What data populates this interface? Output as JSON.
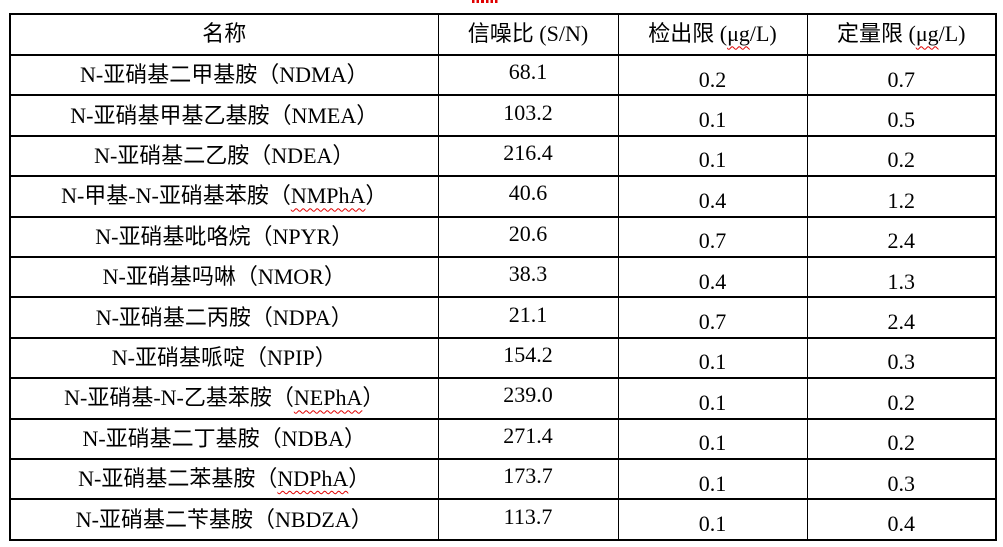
{
  "colors": {
    "grid_line": "#000000",
    "text": "#000000",
    "spellcheck_underline": "#e00000",
    "background": "#ffffff"
  },
  "table": {
    "headers": [
      {
        "pre": "名称",
        "flag": "",
        "post": ""
      },
      {
        "pre": "信噪比 (S/N)",
        "flag": "",
        "post": ""
      },
      {
        "pre": "检出限 (",
        "flag": "μg",
        "post": "/L)"
      },
      {
        "pre": "定量限 (",
        "flag": "μg",
        "post": "/L)"
      }
    ],
    "rows": [
      {
        "name_pre": "N-亚硝基二甲基胺（NDMA）",
        "name_flag": "",
        "name_post": "",
        "sn": "68.1",
        "lod": "0.2",
        "loq": "0.7"
      },
      {
        "name_pre": "N-亚硝基甲基乙基胺（NMEA）",
        "name_flag": "",
        "name_post": "",
        "sn": "103.2",
        "lod": "0.1",
        "loq": "0.5"
      },
      {
        "name_pre": "N-亚硝基二乙胺（NDEA）",
        "name_flag": "",
        "name_post": "",
        "sn": "216.4",
        "lod": "0.1",
        "loq": "0.2"
      },
      {
        "name_pre": "N-甲基-N-亚硝基苯胺（",
        "name_flag": "NMPhA",
        "name_post": "）",
        "sn": "40.6",
        "lod": "0.4",
        "loq": "1.2"
      },
      {
        "name_pre": "N-亚硝基吡咯烷（NPYR）",
        "name_flag": "",
        "name_post": "",
        "sn": "20.6",
        "lod": "0.7",
        "loq": "2.4"
      },
      {
        "name_pre": "N-亚硝基吗啉（NMOR）",
        "name_flag": "",
        "name_post": "",
        "sn": "38.3",
        "lod": "0.4",
        "loq": "1.3"
      },
      {
        "name_pre": "N-亚硝基二丙胺（NDPA）",
        "name_flag": "",
        "name_post": "",
        "sn": "21.1",
        "lod": "0.7",
        "loq": "2.4"
      },
      {
        "name_pre": "N-亚硝基哌啶（NPIP）",
        "name_flag": "",
        "name_post": "",
        "sn": "154.2",
        "lod": "0.1",
        "loq": "0.3"
      },
      {
        "name_pre": "N-亚硝基-N-乙基苯胺（",
        "name_flag": "NEPhA",
        "name_post": "）",
        "sn": "239.0",
        "lod": "0.1",
        "loq": "0.2"
      },
      {
        "name_pre": "N-亚硝基二丁基胺（NDBA）",
        "name_flag": "",
        "name_post": "",
        "sn": "271.4",
        "lod": "0.1",
        "loq": "0.2"
      },
      {
        "name_pre": "N-亚硝基二苯基胺（",
        "name_flag": "NDPhA",
        "name_post": "）",
        "sn": "173.7",
        "lod": "0.1",
        "loq": "0.3"
      },
      {
        "name_pre": "N-亚硝基二苄基胺（NBDZA）",
        "name_flag": "",
        "name_post": "",
        "sn": "113.7",
        "lod": "0.1",
        "loq": "0.4"
      }
    ]
  }
}
